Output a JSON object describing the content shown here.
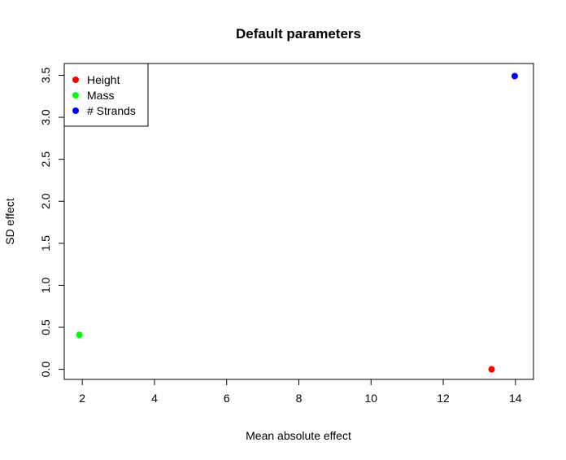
{
  "chart_data": {
    "type": "scatter",
    "title": "Default parameters",
    "xlabel": "Mean absolute effect",
    "ylabel": "SD effect",
    "xlim": [
      1.5,
      14.5
    ],
    "ylim": [
      -0.12,
      3.64
    ],
    "xticks": [
      2,
      4,
      6,
      8,
      10,
      12,
      14
    ],
    "xtick_labels": [
      "2",
      "4",
      "6",
      "8",
      "10",
      "12",
      "14"
    ],
    "yticks": [
      0,
      0.5,
      1,
      1.5,
      2,
      2.5,
      3,
      3.5
    ],
    "ytick_labels": [
      "0.0",
      "0.5",
      "1.0",
      "1.5",
      "2.0",
      "2.5",
      "3.0",
      "3.5"
    ],
    "grid": false,
    "legend_position": "top-left",
    "series": [
      {
        "name": "Height",
        "color": "#ff0000",
        "x": [
          13.34
        ],
        "y": [
          0.0
        ]
      },
      {
        "name": "Mass",
        "color": "#00ff00",
        "x": [
          1.92
        ],
        "y": [
          0.41
        ]
      },
      {
        "name": "# Strands",
        "color": "#0000ff",
        "x": [
          13.98
        ],
        "y": [
          3.49
        ]
      }
    ]
  }
}
